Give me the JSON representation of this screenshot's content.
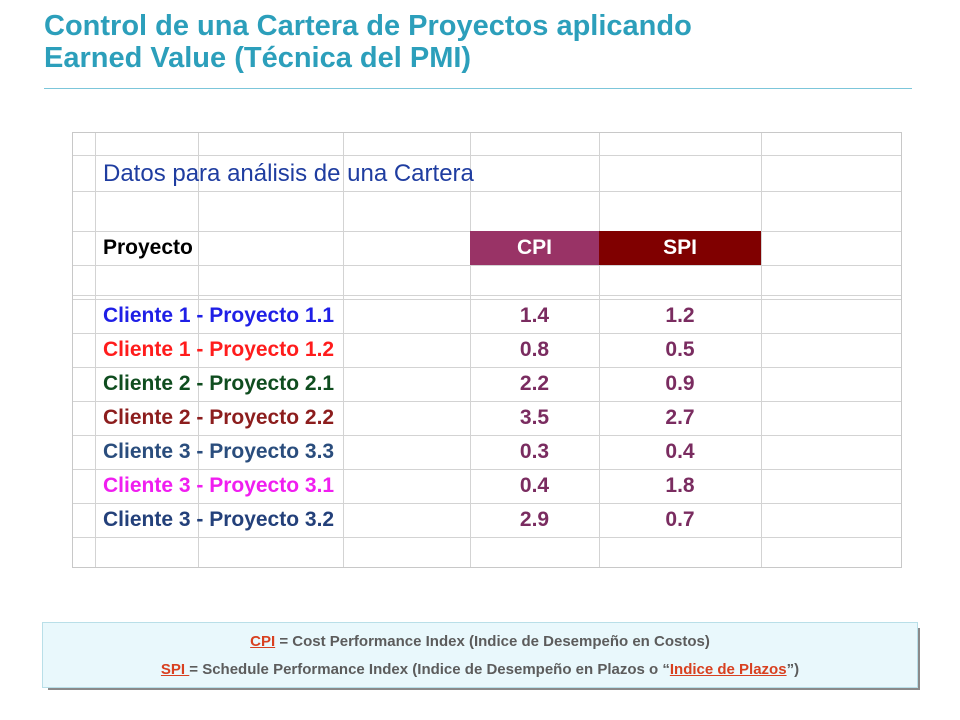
{
  "slide": {
    "title_line1": "Control de una Cartera de Proyectos aplicando",
    "title_line2": "Earned Value (Técnica del PMI)",
    "accent_color": "#2c9fbb"
  },
  "sheet": {
    "heading": "Datos para análisis de una Cartera",
    "headers": {
      "project": "Proyecto",
      "cpi": "CPI",
      "spi": "SPI"
    },
    "header_colors": {
      "cpi": "#993366",
      "spi": "#800000"
    },
    "rows": [
      {
        "name": "Cliente 1 - Proyecto 1.1",
        "cpi": "1.4",
        "spi": "1.2",
        "color": "#1f1fe6"
      },
      {
        "name": "Cliente 1 - Proyecto 1.2",
        "cpi": "0.8",
        "spi": "0.5",
        "color": "#ff1c1c"
      },
      {
        "name": "Cliente 2 - Proyecto 2.1",
        "cpi": "2.2",
        "spi": "0.9",
        "color": "#0f4d1f"
      },
      {
        "name": "Cliente 2 - Proyecto 2.2",
        "cpi": "3.5",
        "spi": "2.7",
        "color": "#8c1d1d"
      },
      {
        "name": "Cliente 3 - Proyecto 3.3",
        "cpi": "0.3",
        "spi": "0.4",
        "color": "#2a4d7d"
      },
      {
        "name": "Cliente 3 - Proyecto 3.1",
        "cpi": "0.4",
        "spi": "1.8",
        "color": "#f01ef0"
      },
      {
        "name": "Cliente 3 - Proyecto 3.2",
        "cpi": "2.9",
        "spi": "0.7",
        "color": "#23407a"
      }
    ]
  },
  "legend": {
    "cpi_abbr": "CPI",
    "cpi_text": " = Cost Performance Index (Indice de Desempeño en Costos)",
    "spi_abbr": "SPI ",
    "spi_text": "= Schedule Performance Index (Indice de Desempeño en Plazos o “",
    "spi_alias": "Indice de Plazos",
    "spi_end": "”)"
  }
}
